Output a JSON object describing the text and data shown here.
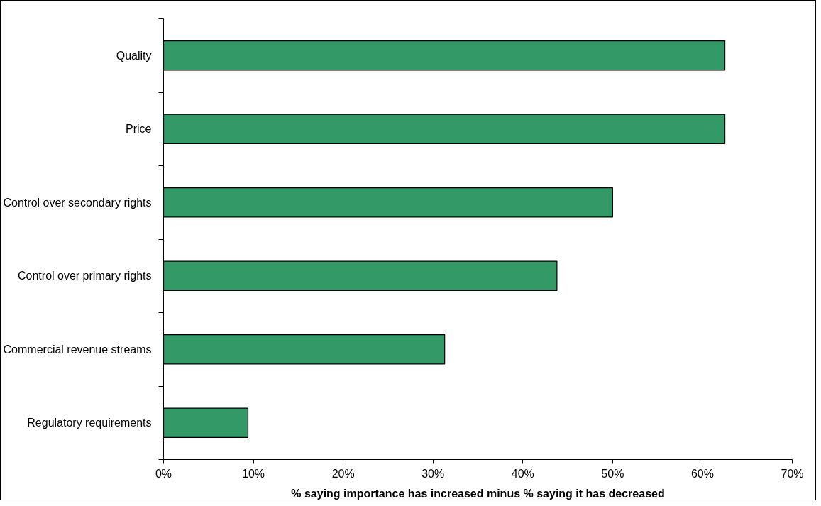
{
  "chart_data": {
    "type": "bar",
    "orientation": "horizontal",
    "categories": [
      "Quality",
      "Price",
      "Control over secondary rights",
      "Control over primary rights",
      "Commercial revenue streams",
      "Regulatory requirements"
    ],
    "values": [
      62.5,
      62.5,
      50,
      43.8,
      31.3,
      9.4
    ],
    "color": "#339966",
    "xlabel": "% saying importance has increased minus % saying it has decreased",
    "xlim": [
      0,
      70
    ],
    "xticks": [
      {
        "value": 0,
        "label": "0%"
      },
      {
        "value": 10,
        "label": "10%"
      },
      {
        "value": 20,
        "label": "20%"
      },
      {
        "value": 30,
        "label": "30%"
      },
      {
        "value": 40,
        "label": "40%"
      },
      {
        "value": 50,
        "label": "50%"
      },
      {
        "value": 60,
        "label": "60%"
      },
      {
        "value": 70,
        "label": "70%"
      }
    ],
    "grid": false
  }
}
